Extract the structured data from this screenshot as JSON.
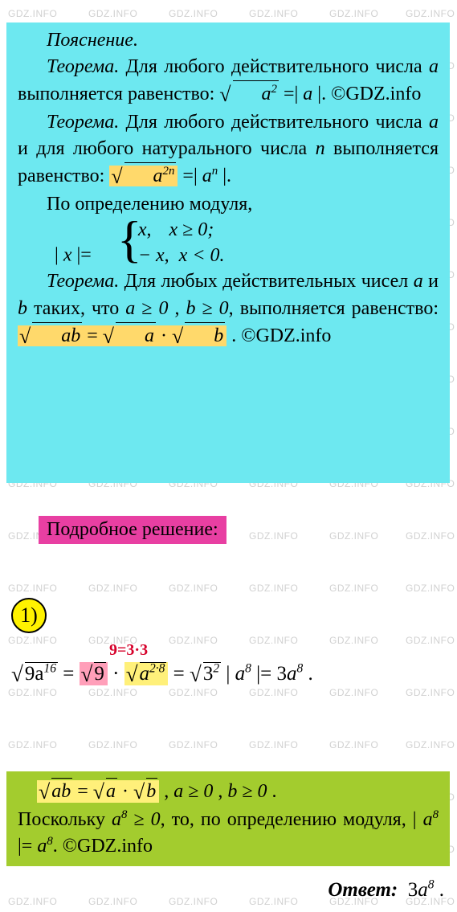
{
  "watermark_text": "GDZ.INFO",
  "cyan": {
    "heading": "Пояснение.",
    "theorem1_label": "Теорема.",
    "theorem1_text_a": "Для любого действительного числа ",
    "theorem1_var": "a",
    "theorem1_text_b": " выполняется равенство: ",
    "theorem1_eq_inside": "a",
    "theorem1_eq_exp": "2",
    "theorem1_eq_rhs_a": "a",
    "copyright": "©GDZ.info",
    "theorem2_label": "Теорема.",
    "theorem2_text_a": "Для любого действительного числа ",
    "theorem2_var_a": "a",
    "theorem2_text_b": " и для любого натурального числа ",
    "theorem2_var_n": "n",
    "theorem2_text_c": " выполняется равенство: ",
    "theorem2_inside_a": "a",
    "theorem2_inside_exp": "2n",
    "theorem2_rhs_a": "a",
    "theorem2_rhs_exp": "n",
    "mod_def": "По определению модуля,",
    "mod_lhs": "x",
    "mod_r1a": "x",
    "mod_r1b": "x ≥ 0;",
    "mod_r2a": "− x",
    "mod_r2b": "x < 0.",
    "theorem3_label": "Теорема.",
    "theorem3_text_a": "Для любых действительных чисел ",
    "theorem3_var_a": "a",
    "theorem3_and": " и ",
    "theorem3_var_b": "b",
    "theorem3_text_b": " таких, что ",
    "cond_a": "a ≥ 0",
    "cond_b": "b ≥ 0",
    "theorem3_text_c": ", выполняется равенство: ",
    "prod_inside": "ab",
    "prod_a": "a",
    "prod_b": "b"
  },
  "pink_header": "Подробное решение:",
  "step1_number": "1)",
  "red_note": "9=3·3",
  "eq": {
    "lhs_inside": "9a",
    "lhs_exp": "16",
    "p1_inside": "9",
    "p2_inside": "a",
    "p2_exp": "2·8",
    "p3_inside": "3",
    "p3_exp": "2",
    "p4_a": "a",
    "p4_exp": "8",
    "res_coef": "3",
    "res_a": "a",
    "res_exp": "8"
  },
  "green": {
    "prod_inside": "ab",
    "prod_a": "a",
    "prod_b": "b",
    "cond_a": "a ≥ 0",
    "cond_b": "b ≥ 0",
    "text_a": "Поскольку ",
    "var_a": "a",
    "var_exp": "8",
    "cond": " ≥ 0",
    "text_b": ", то, по определению модуля, ",
    "rhs_a": "a",
    "rhs_exp": "8",
    "copyright": "©GDZ.info"
  },
  "answer_label": "Ответ:",
  "answer_val_coef": "3",
  "answer_val_a": "a",
  "answer_val_exp": "8",
  "colors": {
    "cyan_bg": "#6de8f0",
    "pink_bg": "#e83fa2",
    "yellow_hl": "#ffd96b",
    "green_bg": "#a3cc2e",
    "yellow_circle": "#fff200",
    "red": "#d6002a",
    "pinkish_hl": "#ff9fb9",
    "lightyellow_hl": "#fff07a"
  }
}
